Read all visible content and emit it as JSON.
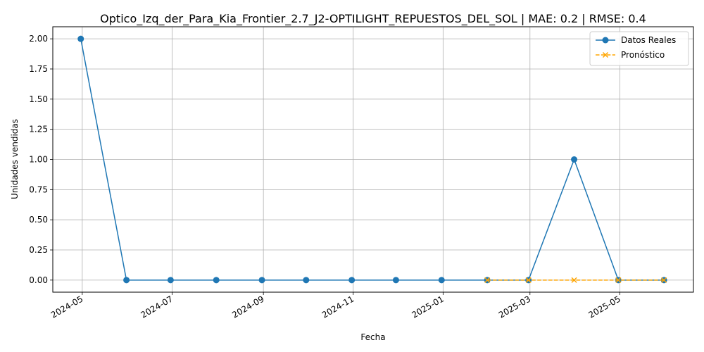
{
  "chart_data": {
    "type": "line",
    "title": "Optico_Izq_der_Para_Kia_Frontier_2.7_J2-OPTILIGHT_REPUESTOS_DEL_SOL | MAE: 0.2 | RMSE: 0.4",
    "xlabel": "Fecha",
    "ylabel": "Unidades vendidas",
    "xlim": [
      "2024-04-11",
      "2025-06-20"
    ],
    "ylim": [
      -0.1,
      2.1
    ],
    "x_ticks": [
      "2024-05-01",
      "2024-07-01",
      "2024-09-01",
      "2024-11-01",
      "2025-01-01",
      "2025-03-01",
      "2025-05-01"
    ],
    "x_tick_labels": [
      "2024-05",
      "2024-07",
      "2024-09",
      "2024-11",
      "2025-01",
      "2025-03",
      "2025-05"
    ],
    "y_ticks": [
      0.0,
      0.25,
      0.5,
      0.75,
      1.0,
      1.25,
      1.5,
      1.75,
      2.0
    ],
    "y_tick_labels": [
      "0.00",
      "0.25",
      "0.50",
      "0.75",
      "1.00",
      "1.25",
      "1.50",
      "1.75",
      "2.00"
    ],
    "grid": true,
    "legend_position": "top-right",
    "series": [
      {
        "name": "Datos Reales",
        "color": "#1f77b4",
        "linestyle": "solid",
        "marker": "circle",
        "x": [
          "2024-04-30",
          "2024-05-31",
          "2024-06-30",
          "2024-07-31",
          "2024-08-31",
          "2024-09-30",
          "2024-10-31",
          "2024-11-30",
          "2024-12-31",
          "2025-01-31",
          "2025-02-28",
          "2025-03-31",
          "2025-04-30",
          "2025-05-31"
        ],
        "y": [
          2,
          0,
          0,
          0,
          0,
          0,
          0,
          0,
          0,
          0,
          0,
          1,
          0,
          0
        ]
      },
      {
        "name": "Pronóstico",
        "color": "#ffa500",
        "linestyle": "dashed",
        "marker": "x",
        "x": [
          "2025-01-31",
          "2025-02-28",
          "2025-03-31",
          "2025-04-30",
          "2025-05-31"
        ],
        "y": [
          0,
          0,
          0,
          0,
          0
        ]
      }
    ]
  }
}
